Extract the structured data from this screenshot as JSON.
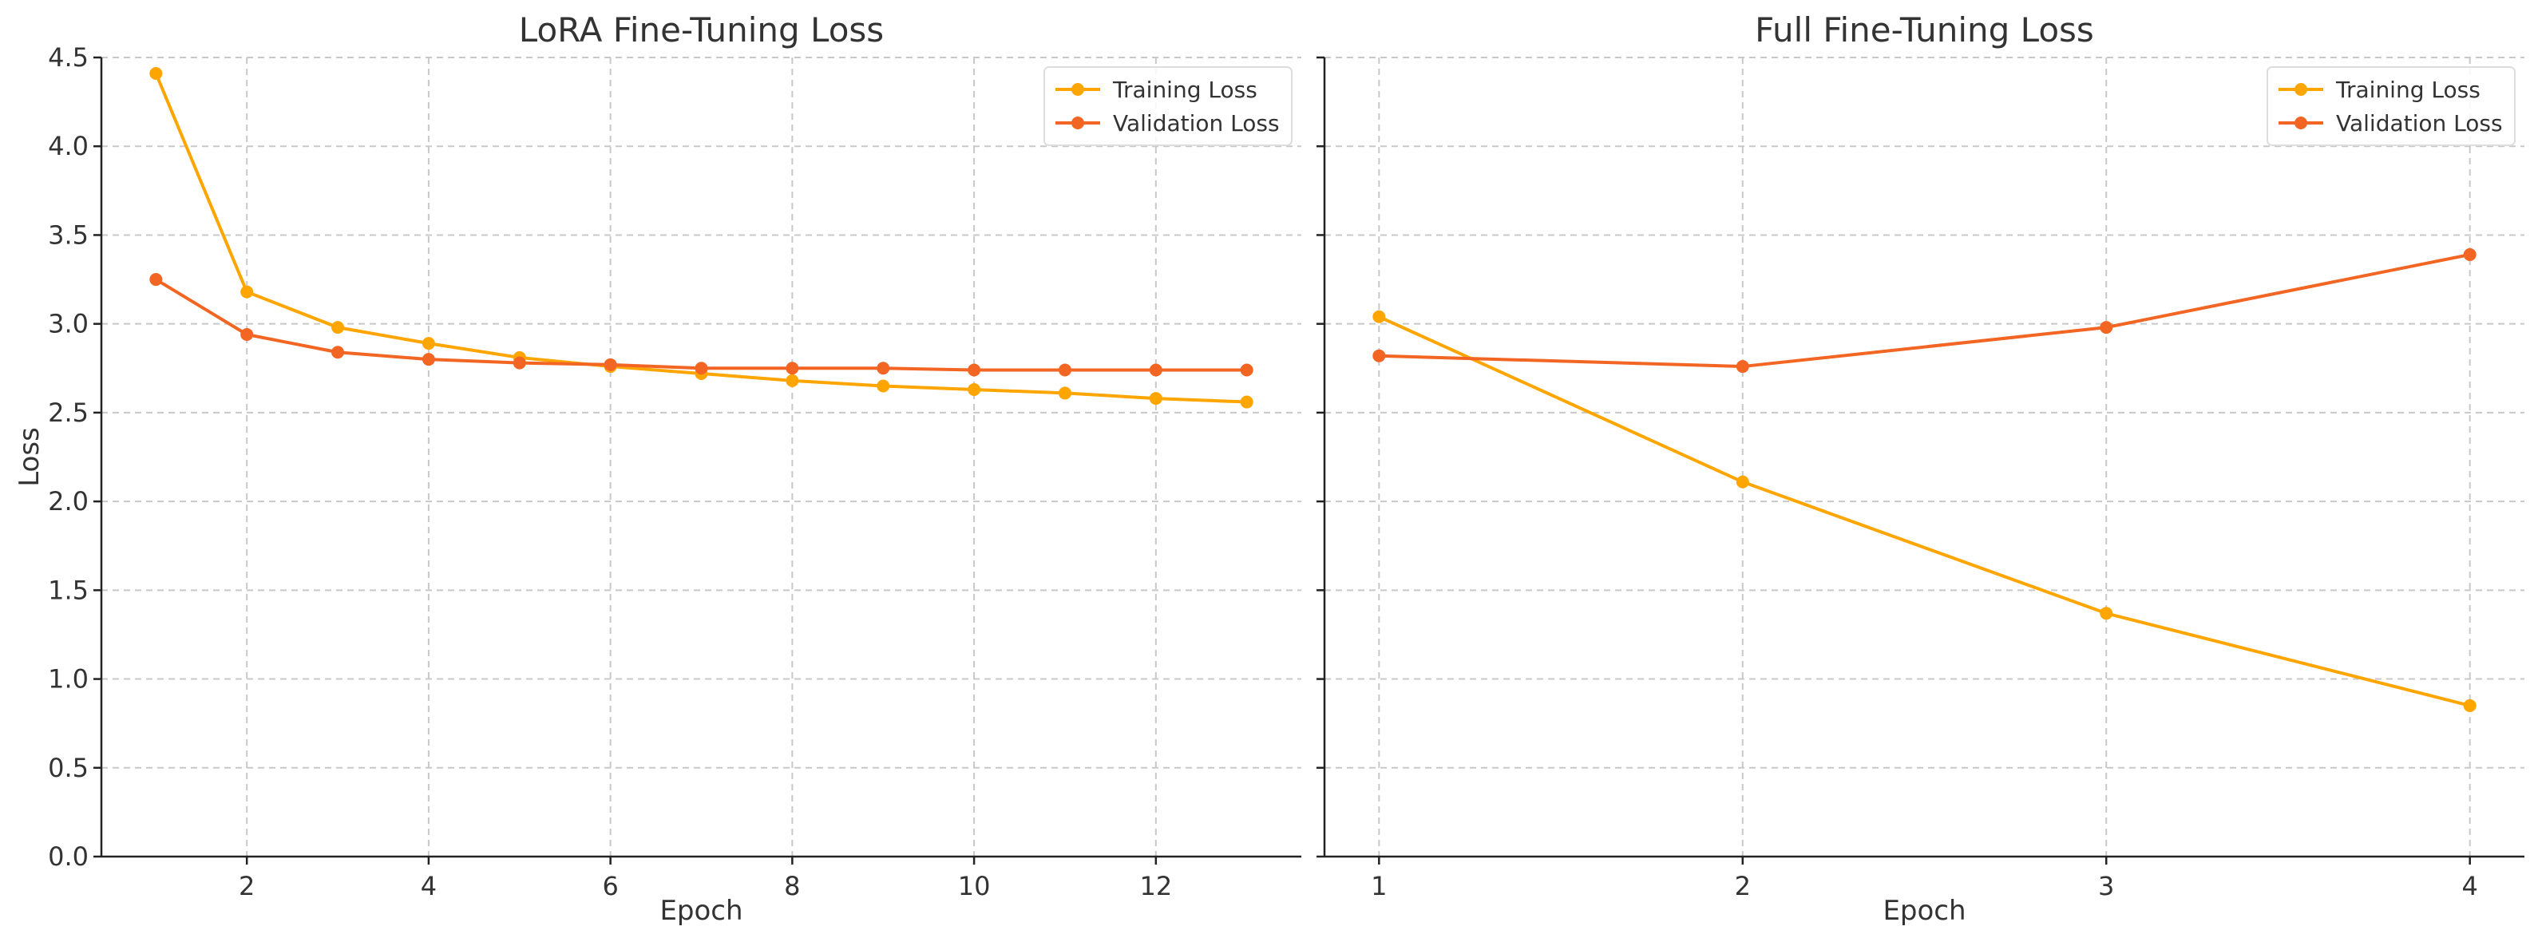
{
  "chart_data": [
    {
      "type": "line",
      "title": "LoRA Fine-Tuning Loss",
      "xlabel": "Epoch",
      "ylabel": "Loss",
      "xlim": [
        0.4,
        13.6
      ],
      "ylim": [
        0,
        4.5
      ],
      "xticks": [
        2,
        4,
        6,
        8,
        10,
        12
      ],
      "yticks": [
        0.0,
        0.5,
        1.0,
        1.5,
        2.0,
        2.5,
        3.0,
        3.5,
        4.0,
        4.5
      ],
      "grid": true,
      "legend_position": "top-right",
      "x": [
        1,
        2,
        3,
        4,
        5,
        6,
        7,
        8,
        9,
        10,
        11,
        12,
        13
      ],
      "series": [
        {
          "name": "Training Loss",
          "color": "#FFA500",
          "values": [
            4.41,
            3.18,
            2.98,
            2.89,
            2.81,
            2.76,
            2.72,
            2.68,
            2.65,
            2.63,
            2.61,
            2.58,
            2.56
          ]
        },
        {
          "name": "Validation Loss",
          "color": "#F26522",
          "values": [
            3.25,
            2.94,
            2.84,
            2.8,
            2.78,
            2.77,
            2.75,
            2.75,
            2.75,
            2.74,
            2.74,
            2.74,
            2.74
          ]
        }
      ]
    },
    {
      "type": "line",
      "title": "Full Fine-Tuning Loss",
      "xlabel": "Epoch",
      "ylabel": "",
      "xlim": [
        0.85,
        4.15
      ],
      "ylim": [
        0,
        4.5
      ],
      "xticks": [
        1,
        2,
        3,
        4
      ],
      "yticks": [
        0.0,
        0.5,
        1.0,
        1.5,
        2.0,
        2.5,
        3.0,
        3.5,
        4.0,
        4.5
      ],
      "grid": true,
      "legend_position": "top-right",
      "x": [
        1,
        2,
        3,
        4
      ],
      "series": [
        {
          "name": "Training Loss",
          "color": "#FFA500",
          "values": [
            3.04,
            2.11,
            1.37,
            0.85
          ]
        },
        {
          "name": "Validation Loss",
          "color": "#F26522",
          "values": [
            2.82,
            2.76,
            2.98,
            3.39
          ]
        }
      ]
    }
  ]
}
